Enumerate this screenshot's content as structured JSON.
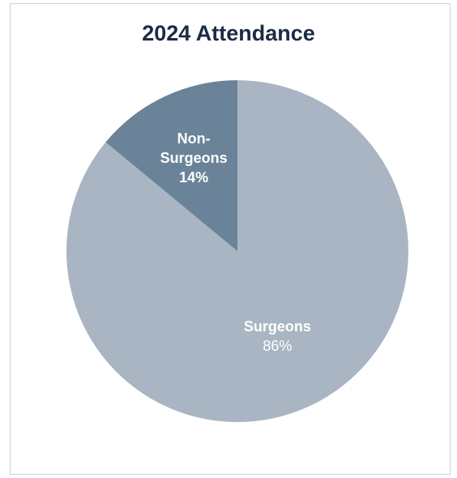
{
  "chart_data": {
    "type": "pie",
    "title": "2024 Attendance",
    "categories": [
      "Surgeons",
      "Non-Surgeons"
    ],
    "values": [
      86,
      14
    ],
    "value_labels": [
      "86%",
      "14%"
    ],
    "colors": [
      "#a9b5c2",
      "#6a8399"
    ]
  }
}
